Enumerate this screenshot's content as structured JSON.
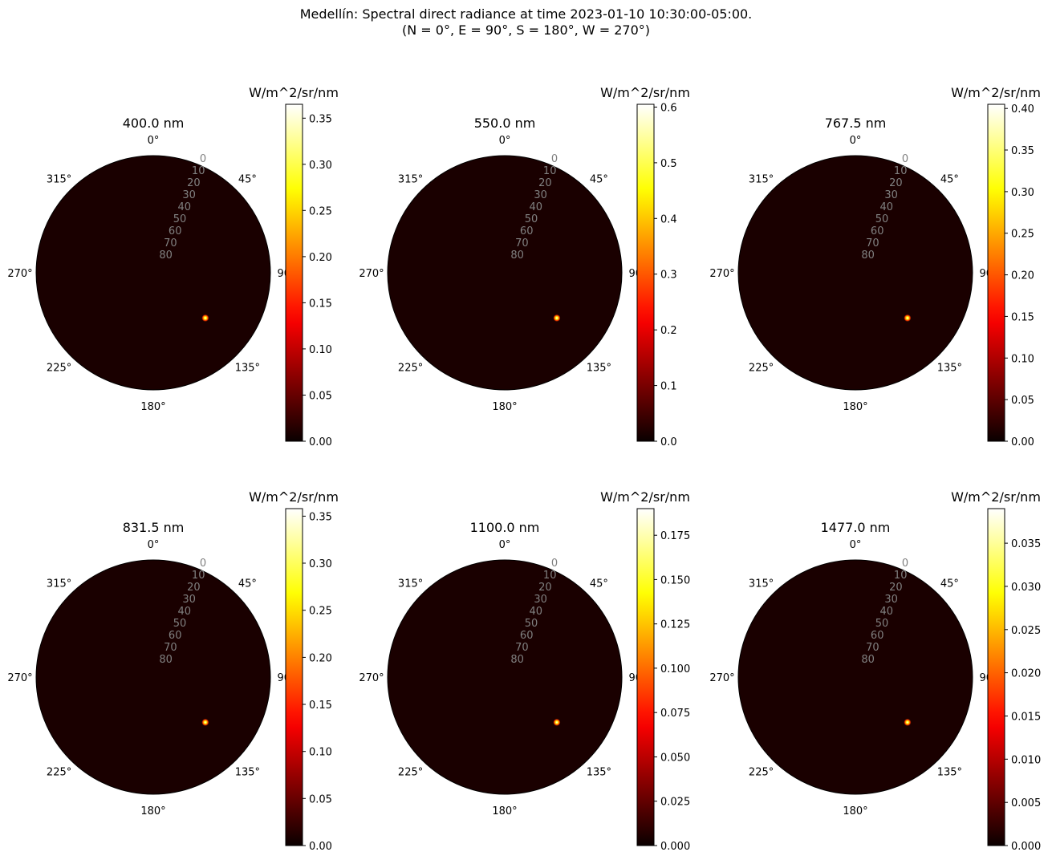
{
  "figure": {
    "title_line1": "Medellín: Spectral direct radiance at time 2023-01-10 10:30:00-05:00.",
    "title_line2": "(N = 0°, E = 90°, S = 180°, W = 270°)"
  },
  "colors": {
    "background_dark": "#1a0000",
    "radial_tick": "#808080",
    "colormap": "hot"
  },
  "chart_data": [
    {
      "type": "heatmap",
      "projection": "polar",
      "title": "400.0 nm",
      "angular_ticks": [
        "0°",
        "45°",
        "90°",
        "135°",
        "180°",
        "225°",
        "270°",
        "315°"
      ],
      "radial_ticks": [
        "0",
        "10",
        "20",
        "30",
        "40",
        "50",
        "60",
        "70",
        "80"
      ],
      "colorbar": {
        "label": "W/m^2/sr/nm",
        "range": [
          0,
          0.365
        ],
        "ticks": [
          "0.00",
          "0.05",
          "0.10",
          "0.15",
          "0.20",
          "0.25",
          "0.30",
          "0.35"
        ]
      },
      "sun": {
        "azimuth_deg": 131,
        "zenith_deg": 53,
        "max_value": 0.365
      }
    },
    {
      "type": "heatmap",
      "projection": "polar",
      "title": "550.0 nm",
      "angular_ticks": [
        "0°",
        "45°",
        "90°",
        "135°",
        "180°",
        "225°",
        "270°",
        "315°"
      ],
      "radial_ticks": [
        "0",
        "10",
        "20",
        "30",
        "40",
        "50",
        "60",
        "70",
        "80"
      ],
      "colorbar": {
        "label": "W/m^2/sr/nm",
        "range": [
          0,
          0.605
        ],
        "ticks": [
          "0.0",
          "0.1",
          "0.2",
          "0.3",
          "0.4",
          "0.5",
          "0.6"
        ]
      },
      "sun": {
        "azimuth_deg": 131,
        "zenith_deg": 53,
        "max_value": 0.605
      }
    },
    {
      "type": "heatmap",
      "projection": "polar",
      "title": "767.5 nm",
      "angular_ticks": [
        "0°",
        "45°",
        "90°",
        "135°",
        "180°",
        "225°",
        "270°",
        "315°"
      ],
      "radial_ticks": [
        "0",
        "10",
        "20",
        "30",
        "40",
        "50",
        "60",
        "70",
        "80"
      ],
      "colorbar": {
        "label": "W/m^2/sr/nm",
        "range": [
          0,
          0.405
        ],
        "ticks": [
          "0.00",
          "0.05",
          "0.10",
          "0.15",
          "0.20",
          "0.25",
          "0.30",
          "0.35",
          "0.40"
        ]
      },
      "sun": {
        "azimuth_deg": 131,
        "zenith_deg": 53,
        "max_value": 0.405
      }
    },
    {
      "type": "heatmap",
      "projection": "polar",
      "title": "831.5 nm",
      "angular_ticks": [
        "0°",
        "45°",
        "90°",
        "135°",
        "180°",
        "225°",
        "270°",
        "315°"
      ],
      "radial_ticks": [
        "0",
        "10",
        "20",
        "30",
        "40",
        "50",
        "60",
        "70",
        "80"
      ],
      "colorbar": {
        "label": "W/m^2/sr/nm",
        "range": [
          0,
          0.358
        ],
        "ticks": [
          "0.00",
          "0.05",
          "0.10",
          "0.15",
          "0.20",
          "0.25",
          "0.30",
          "0.35"
        ]
      },
      "sun": {
        "azimuth_deg": 131,
        "zenith_deg": 53,
        "max_value": 0.358
      }
    },
    {
      "type": "heatmap",
      "projection": "polar",
      "title": "1100.0 nm",
      "angular_ticks": [
        "0°",
        "45°",
        "90°",
        "135°",
        "180°",
        "225°",
        "270°",
        "315°"
      ],
      "radial_ticks": [
        "0",
        "10",
        "20",
        "30",
        "40",
        "50",
        "60",
        "70",
        "80"
      ],
      "colorbar": {
        "label": "W/m^2/sr/nm",
        "range": [
          0,
          0.19
        ],
        "ticks": [
          "0.000",
          "0.025",
          "0.050",
          "0.075",
          "0.100",
          "0.125",
          "0.150",
          "0.175"
        ]
      },
      "sun": {
        "azimuth_deg": 131,
        "zenith_deg": 53,
        "max_value": 0.19
      }
    },
    {
      "type": "heatmap",
      "projection": "polar",
      "title": "1477.0 nm",
      "angular_ticks": [
        "0°",
        "45°",
        "90°",
        "135°",
        "180°",
        "225°",
        "270°",
        "315°"
      ],
      "radial_ticks": [
        "0",
        "10",
        "20",
        "30",
        "40",
        "50",
        "60",
        "70",
        "80"
      ],
      "colorbar": {
        "label": "W/m^2/sr/nm",
        "range": [
          0,
          0.039
        ],
        "ticks": [
          "0.000",
          "0.005",
          "0.010",
          "0.015",
          "0.020",
          "0.025",
          "0.030",
          "0.035"
        ]
      },
      "sun": {
        "azimuth_deg": 131,
        "zenith_deg": 53,
        "max_value": 0.039
      }
    }
  ]
}
